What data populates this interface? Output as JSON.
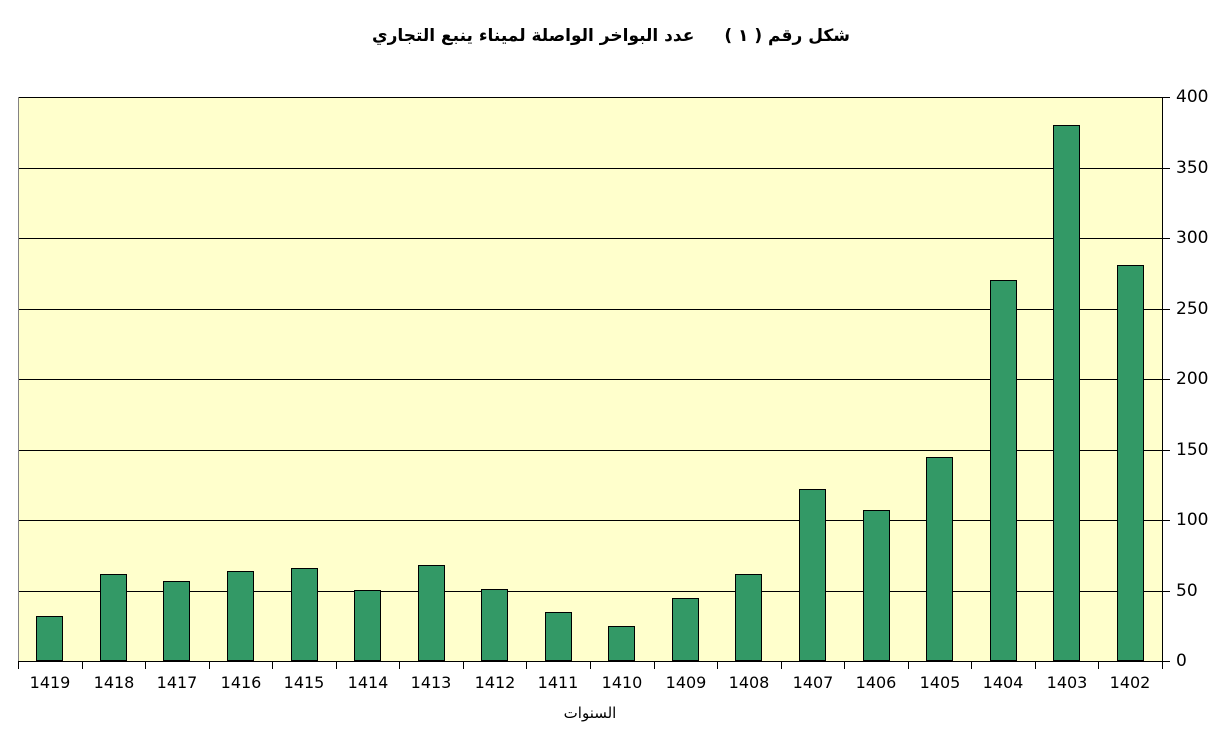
{
  "title": {
    "label": "شكل رقم ( ١ )",
    "text": "عدد البواخر الواصلة لميناء ينبع التجاري"
  },
  "chart_data": {
    "type": "bar",
    "title": "شكل رقم ( ١ )  عدد البواخر الواصلة لميناء ينبع التجاري",
    "categories": [
      "1419",
      "1418",
      "1417",
      "1416",
      "1415",
      "1414",
      "1413",
      "1412",
      "1411",
      "1410",
      "1409",
      "1408",
      "1407",
      "1406",
      "1405",
      "1404",
      "1403",
      "1402"
    ],
    "values": [
      32,
      62,
      57,
      64,
      66,
      50,
      68,
      51,
      35,
      25,
      45,
      62,
      122,
      107,
      145,
      270,
      380,
      281
    ],
    "xlabel": "السنوات",
    "ylabel": "",
    "ylim": [
      0,
      400
    ],
    "ytick_step": 50,
    "y_axis_side": "right",
    "grid": true,
    "bar_color": "#339966",
    "bar_border_color": "#000000",
    "plot_bg": "#FFFFCC",
    "outer_bg": "#FFFFFF",
    "legend": "none"
  }
}
